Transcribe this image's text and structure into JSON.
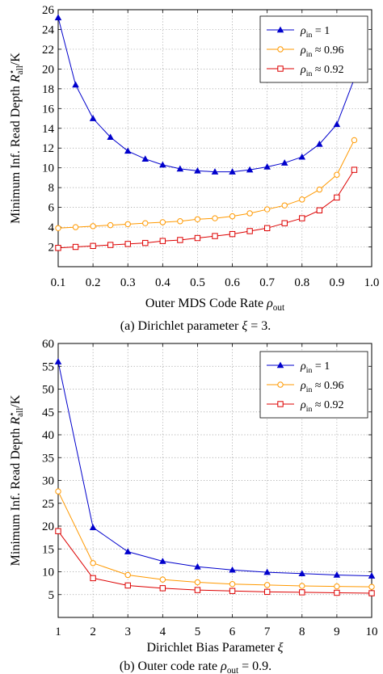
{
  "chart_data": [
    {
      "type": "line",
      "xlabel": "Outer MDS Code Rate ρout",
      "ylabel": "Minimum Inf. Read Depth R*all/K",
      "caption": "(a) Dirichlet parameter ξ = 3.",
      "xlim": [
        0.1,
        0.95
      ],
      "ylim": [
        0,
        26
      ],
      "xticks": [
        0.1,
        0.2,
        0.3,
        0.4,
        0.5,
        0.6,
        0.7,
        0.8,
        0.9,
        1
      ],
      "yticks": [
        2,
        4,
        6,
        8,
        10,
        12,
        14,
        16,
        18,
        20,
        22,
        24,
        26
      ],
      "grid": true,
      "legend_position": "top-right",
      "x": [
        0.1,
        0.15,
        0.2,
        0.25,
        0.3,
        0.35,
        0.4,
        0.45,
        0.5,
        0.55,
        0.6,
        0.65,
        0.7,
        0.75,
        0.8,
        0.85,
        0.9,
        0.95
      ],
      "series": [
        {
          "name": "ρin = 1",
          "color": "#0000cc",
          "marker": "triangle",
          "values": [
            25.2,
            18.4,
            15.0,
            13.1,
            11.7,
            10.9,
            10.3,
            9.9,
            9.7,
            9.6,
            9.6,
            9.8,
            10.1,
            10.5,
            11.1,
            12.4,
            14.4,
            19.0
          ]
        },
        {
          "name": "ρin ≈ 0.96",
          "color": "#ff9900",
          "marker": "circle",
          "values": [
            3.9,
            4.0,
            4.1,
            4.2,
            4.3,
            4.4,
            4.5,
            4.6,
            4.8,
            4.9,
            5.1,
            5.4,
            5.8,
            6.2,
            6.8,
            7.8,
            9.3,
            12.8
          ]
        },
        {
          "name": "ρin ≈ 0.92",
          "color": "#dd0000",
          "marker": "square",
          "values": [
            1.9,
            2.0,
            2.1,
            2.2,
            2.3,
            2.4,
            2.6,
            2.7,
            2.9,
            3.1,
            3.3,
            3.6,
            3.9,
            4.4,
            4.9,
            5.7,
            7.0,
            9.8
          ]
        }
      ]
    },
    {
      "type": "line",
      "xlabel": "Dirichlet Bias Parameter ξ",
      "ylabel": "Minimum Inf. Read Depth R*all/K",
      "caption": "(b) Outer code rate ρout = 0.9.",
      "xlim": [
        1,
        10
      ],
      "ylim": [
        0,
        60
      ],
      "xticks": [
        1,
        2,
        3,
        4,
        5,
        6,
        7,
        8,
        9,
        10
      ],
      "yticks": [
        5,
        10,
        15,
        20,
        25,
        30,
        35,
        40,
        45,
        50,
        55,
        60
      ],
      "grid": true,
      "legend_position": "top-right",
      "x": [
        1,
        2,
        3,
        4,
        5,
        6,
        7,
        8,
        9,
        10
      ],
      "series": [
        {
          "name": "ρin = 1",
          "color": "#0000cc",
          "marker": "triangle",
          "values": [
            56.0,
            19.7,
            14.4,
            12.3,
            11.1,
            10.4,
            9.9,
            9.6,
            9.3,
            9.1
          ]
        },
        {
          "name": "ρin ≈ 0.96",
          "color": "#ff9900",
          "marker": "circle",
          "values": [
            27.6,
            11.9,
            9.3,
            8.3,
            7.7,
            7.3,
            7.1,
            6.9,
            6.8,
            6.7
          ]
        },
        {
          "name": "ρin ≈ 0.92",
          "color": "#dd0000",
          "marker": "square",
          "values": [
            18.9,
            8.6,
            7.0,
            6.4,
            6.0,
            5.8,
            5.6,
            5.5,
            5.4,
            5.3
          ]
        }
      ]
    }
  ]
}
